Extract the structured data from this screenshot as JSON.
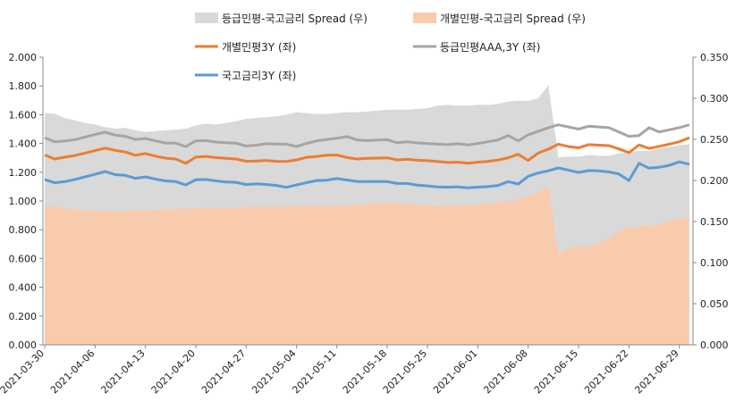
{
  "chart_data": {
    "type": "line",
    "title": "",
    "xlabel": "",
    "ylabel_left": "",
    "ylabel_right": "",
    "ylim_left": [
      0,
      2.0
    ],
    "ylim_right": [
      0,
      0.35
    ],
    "y_ticks_left": [
      "0.000",
      "0.200",
      "0.400",
      "0.600",
      "0.800",
      "1.000",
      "1.200",
      "1.400",
      "1.600",
      "1.800",
      "2.000"
    ],
    "y_ticks_right": [
      "0.000",
      "0.050",
      "0.100",
      "0.150",
      "0.200",
      "0.250",
      "0.300",
      "0.350"
    ],
    "x_ticks": [
      "2021-03-30",
      "2021-04-06",
      "2021-04-13",
      "2021-04-20",
      "2021-04-27",
      "2021-05-04",
      "2021-05-11",
      "2021-05-18",
      "2021-05-25",
      "2021-06-01",
      "2021-06-08",
      "2021-06-15",
      "2021-06-22",
      "2021-06-29"
    ],
    "grid": false,
    "legend_position": "top",
    "x": [
      "2021-03-30",
      "2021-03-31",
      "2021-04-01",
      "2021-04-02",
      "2021-04-05",
      "2021-04-06",
      "2021-04-07",
      "2021-04-08",
      "2021-04-09",
      "2021-04-12",
      "2021-04-13",
      "2021-04-14",
      "2021-04-15",
      "2021-04-16",
      "2021-04-19",
      "2021-04-20",
      "2021-04-21",
      "2021-04-22",
      "2021-04-23",
      "2021-04-26",
      "2021-04-27",
      "2021-04-28",
      "2021-04-29",
      "2021-04-30",
      "2021-05-03",
      "2021-05-04",
      "2021-05-06",
      "2021-05-07",
      "2021-05-10",
      "2021-05-11",
      "2021-05-12",
      "2021-05-13",
      "2021-05-14",
      "2021-05-17",
      "2021-05-18",
      "2021-05-20",
      "2021-05-21",
      "2021-05-24",
      "2021-05-25",
      "2021-05-26",
      "2021-05-27",
      "2021-05-28",
      "2021-05-31",
      "2021-06-01",
      "2021-06-02",
      "2021-06-03",
      "2021-06-04",
      "2021-06-07",
      "2021-06-08",
      "2021-06-09",
      "2021-06-10",
      "2021-06-11",
      "2021-06-14",
      "2021-06-15",
      "2021-06-16",
      "2021-06-17",
      "2021-06-18",
      "2021-06-21",
      "2021-06-22",
      "2021-06-23",
      "2021-06-24",
      "2021-06-25",
      "2021-06-28",
      "2021-06-29",
      "2021-06-30"
    ],
    "series": [
      {
        "name": "등급민평-국고금리 Spread (우)",
        "axis": "right",
        "kind": "area",
        "color": "#d9d9d9",
        "values": [
          0.282,
          0.281,
          0.276,
          0.273,
          0.27,
          0.268,
          0.265,
          0.263,
          0.264,
          0.261,
          0.259,
          0.26,
          0.261,
          0.262,
          0.263,
          0.267,
          0.269,
          0.268,
          0.27,
          0.272,
          0.275,
          0.276,
          0.277,
          0.278,
          0.28,
          0.283,
          0.282,
          0.281,
          0.281,
          0.282,
          0.283,
          0.283,
          0.284,
          0.285,
          0.286,
          0.286,
          0.286,
          0.287,
          0.288,
          0.291,
          0.292,
          0.291,
          0.291,
          0.292,
          0.292,
          0.293,
          0.296,
          0.297,
          0.297,
          0.3,
          0.316,
          0.228,
          0.229,
          0.229,
          0.231,
          0.23,
          0.23,
          0.233,
          0.234,
          0.236,
          0.236,
          0.239,
          0.241,
          0.243,
          0.244
        ]
      },
      {
        "name": "개별민평-국고금리 Spread (우)",
        "axis": "right",
        "kind": "area",
        "color": "#f8cbad",
        "values": [
          0.168,
          0.168,
          0.166,
          0.165,
          0.164,
          0.163,
          0.163,
          0.162,
          0.163,
          0.163,
          0.164,
          0.164,
          0.165,
          0.165,
          0.166,
          0.166,
          0.167,
          0.167,
          0.167,
          0.167,
          0.168,
          0.168,
          0.168,
          0.168,
          0.168,
          0.169,
          0.169,
          0.169,
          0.169,
          0.169,
          0.17,
          0.17,
          0.172,
          0.173,
          0.173,
          0.172,
          0.172,
          0.171,
          0.17,
          0.169,
          0.17,
          0.17,
          0.17,
          0.171,
          0.172,
          0.173,
          0.175,
          0.177,
          0.181,
          0.186,
          0.193,
          0.11,
          0.118,
          0.119,
          0.12,
          0.123,
          0.13,
          0.138,
          0.143,
          0.144,
          0.145,
          0.147,
          0.15,
          0.153,
          0.156
        ]
      },
      {
        "name": "개별민평3Y (좌)",
        "axis": "left",
        "kind": "line",
        "color": "#ed7d31",
        "values": [
          1.32,
          1.292,
          1.305,
          1.316,
          1.333,
          1.35,
          1.368,
          1.352,
          1.341,
          1.318,
          1.33,
          1.312,
          1.298,
          1.292,
          1.262,
          1.305,
          1.31,
          1.302,
          1.296,
          1.292,
          1.276,
          1.278,
          1.282,
          1.276,
          1.275,
          1.286,
          1.304,
          1.31,
          1.318,
          1.32,
          1.302,
          1.292,
          1.296,
          1.298,
          1.3,
          1.286,
          1.29,
          1.283,
          1.28,
          1.275,
          1.268,
          1.27,
          1.262,
          1.27,
          1.275,
          1.285,
          1.3,
          1.325,
          1.282,
          1.334,
          1.36,
          1.395,
          1.378,
          1.37,
          1.392,
          1.388,
          1.385,
          1.362,
          1.336,
          1.39,
          1.365,
          1.38,
          1.395,
          1.412,
          1.44
        ]
      },
      {
        "name": "등급민평AAA,3Y (좌)",
        "axis": "left",
        "kind": "line",
        "color": "#a5a5a5",
        "values": [
          1.44,
          1.412,
          1.418,
          1.426,
          1.445,
          1.462,
          1.478,
          1.458,
          1.45,
          1.428,
          1.435,
          1.418,
          1.403,
          1.402,
          1.378,
          1.418,
          1.42,
          1.41,
          1.405,
          1.402,
          1.382,
          1.388,
          1.398,
          1.396,
          1.395,
          1.378,
          1.4,
          1.418,
          1.428,
          1.436,
          1.448,
          1.425,
          1.42,
          1.424,
          1.426,
          1.405,
          1.412,
          1.404,
          1.4,
          1.395,
          1.392,
          1.398,
          1.39,
          1.4,
          1.412,
          1.425,
          1.455,
          1.418,
          1.46,
          1.485,
          1.51,
          1.53,
          1.515,
          1.5,
          1.52,
          1.515,
          1.51,
          1.48,
          1.45,
          1.455,
          1.51,
          1.48,
          1.495,
          1.51,
          1.53
        ]
      },
      {
        "name": "국고금리3Y (좌)",
        "axis": "left",
        "kind": "line",
        "color": "#5b9bd5",
        "values": [
          1.15,
          1.127,
          1.135,
          1.15,
          1.168,
          1.186,
          1.205,
          1.183,
          1.178,
          1.158,
          1.168,
          1.152,
          1.14,
          1.135,
          1.112,
          1.148,
          1.15,
          1.14,
          1.132,
          1.13,
          1.114,
          1.12,
          1.115,
          1.108,
          1.095,
          1.112,
          1.128,
          1.142,
          1.145,
          1.156,
          1.146,
          1.136,
          1.135,
          1.136,
          1.135,
          1.122,
          1.122,
          1.11,
          1.105,
          1.098,
          1.096,
          1.098,
          1.092,
          1.096,
          1.1,
          1.108,
          1.135,
          1.118,
          1.172,
          1.195,
          1.21,
          1.23,
          1.215,
          1.198,
          1.212,
          1.21,
          1.202,
          1.188,
          1.142,
          1.262,
          1.228,
          1.235,
          1.248,
          1.272,
          1.255
        ]
      }
    ]
  }
}
